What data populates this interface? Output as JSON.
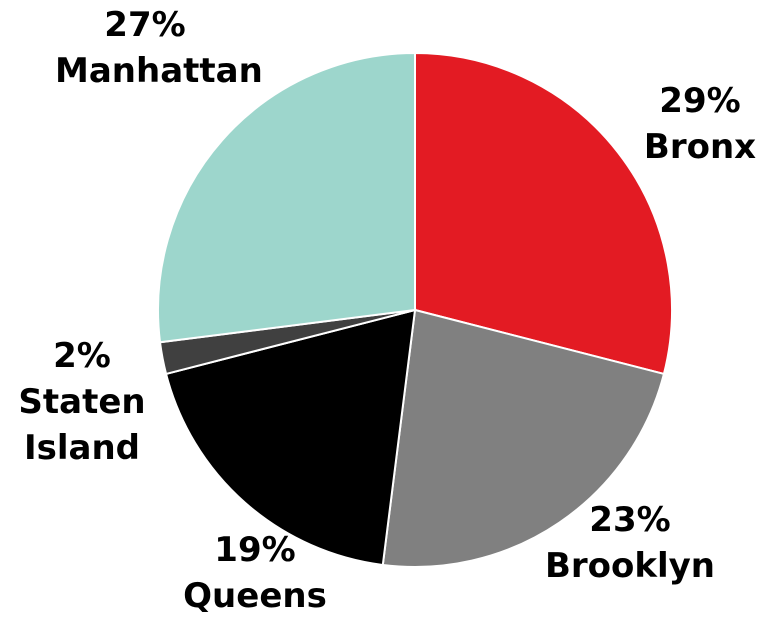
{
  "chart_data": {
    "type": "pie",
    "categories": [
      "Bronx",
      "Brooklyn",
      "Queens",
      "Staten Island",
      "Manhattan"
    ],
    "values": [
      29,
      23,
      19,
      2,
      27
    ],
    "value_labels": [
      "29%",
      "23%",
      "19%",
      "2%",
      "27%"
    ],
    "colors": [
      "#e31b23",
      "#808080",
      "#000000",
      "#404040",
      "#9dd6cc"
    ]
  }
}
